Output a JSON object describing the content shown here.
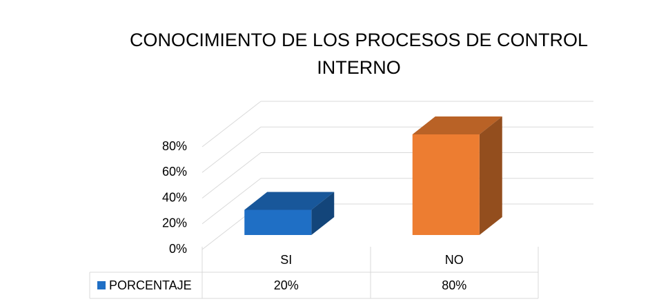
{
  "chart_data": {
    "type": "bar3d",
    "title": "CONOCIMIENTO DE LOS PROCESOS DE CONTROL INTERNO",
    "categories": [
      "SI",
      "NO"
    ],
    "series": [
      {
        "name": "PORCENTAJE",
        "color": "#1f6fc5",
        "point_colors": [
          "#1f6fc5",
          "#ed7d31"
        ],
        "values": [
          20,
          80
        ],
        "value_labels": [
          "20%",
          "80%"
        ]
      }
    ],
    "ylim": [
      0,
      80
    ],
    "yticks": [
      {
        "value": 0,
        "label": "0%"
      },
      {
        "value": 20,
        "label": "20%"
      },
      {
        "value": 40,
        "label": "40%"
      },
      {
        "value": 60,
        "label": "60%"
      },
      {
        "value": 80,
        "label": "80%"
      }
    ],
    "grid": true
  }
}
